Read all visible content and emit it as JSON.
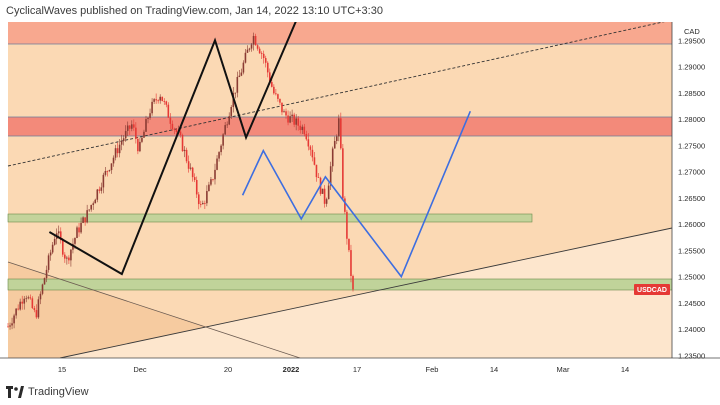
{
  "header": {
    "text": "CyclicalWaves published on TradingView.com, Jan 14, 2022 13:10 UTC+3:30"
  },
  "footer": {
    "logo_text": "TradingView"
  },
  "axis": {
    "currency": "CAD",
    "y_ticks": [
      "1.29500",
      "1.29000",
      "1.28500",
      "1.28000",
      "1.27500",
      "1.27000",
      "1.26500",
      "1.26000",
      "1.25500",
      "1.25000",
      "1.24500",
      "1.24000",
      "1.23500"
    ],
    "x_ticks": [
      "15",
      "Dec",
      "20",
      "2022",
      "17",
      "Feb",
      "14",
      "Mar",
      "14"
    ]
  },
  "symbol_badge": {
    "label": "USDCAD",
    "color": "#e53935"
  },
  "colors": {
    "background_zone": "#fbd9b4",
    "lower_zone": "#fbe3c8",
    "resistance_zone": "#f69a83",
    "support_zone": "#c3d39b",
    "candle_down": "#e53935",
    "projection_blue": "#3d6ee0"
  },
  "chart_data": {
    "type": "candlestick",
    "title": "",
    "ylim": [
      1.2345,
      1.2985
    ],
    "y_label": "CAD",
    "symbol": "USDCAD",
    "zones": [
      {
        "name": "resistance-top",
        "from": 1.295,
        "to": 1.2985
      },
      {
        "name": "resistance-mid",
        "from": 1.2776,
        "to": 1.281
      },
      {
        "name": "support-upper",
        "from": 1.261,
        "to": 1.2618
      },
      {
        "name": "support-lower",
        "from": 1.2485,
        "to": 1.2498
      }
    ],
    "price_path": [
      [
        0.0,
        1.2405
      ],
      [
        0.05,
        1.247
      ],
      [
        0.08,
        1.2425
      ],
      [
        0.11,
        1.251
      ],
      [
        0.14,
        1.259
      ],
      [
        0.17,
        1.253
      ],
      [
        0.2,
        1.2585
      ],
      [
        0.23,
        1.262
      ],
      [
        0.27,
        1.268
      ],
      [
        0.3,
        1.272
      ],
      [
        0.33,
        1.276
      ],
      [
        0.36,
        1.279
      ],
      [
        0.38,
        1.274
      ],
      [
        0.41,
        1.2815
      ],
      [
        0.44,
        1.285
      ],
      [
        0.47,
        1.28
      ],
      [
        0.5,
        1.276
      ],
      [
        0.53,
        1.27
      ],
      [
        0.56,
        1.263
      ],
      [
        0.59,
        1.268
      ],
      [
        0.62,
        1.276
      ],
      [
        0.65,
        1.284
      ],
      [
        0.68,
        1.29
      ],
      [
        0.71,
        1.296
      ],
      [
        0.74,
        1.292
      ],
      [
        0.77,
        1.285
      ],
      [
        0.8,
        1.281
      ],
      [
        0.83,
        1.2795
      ],
      [
        0.86,
        1.278
      ],
      [
        0.88,
        1.274
      ],
      [
        0.9,
        1.268
      ],
      [
        0.92,
        1.264
      ],
      [
        0.94,
        1.273
      ],
      [
        0.96,
        1.28
      ],
      [
        0.97,
        1.266
      ],
      [
        0.985,
        1.256
      ],
      [
        1.0,
        1.247
      ]
    ],
    "projections": {
      "black_zigzag": [
        [
          0.12,
          1.2585
        ],
        [
          0.33,
          1.2505
        ],
        [
          0.6,
          1.295
        ],
        [
          0.69,
          1.2765
        ],
        [
          0.85,
          1.301
        ]
      ],
      "blue_zigzag": [
        [
          0.68,
          1.2655
        ],
        [
          0.74,
          1.274
        ],
        [
          0.85,
          1.261
        ],
        [
          0.92,
          1.269
        ],
        [
          1.14,
          1.25
        ],
        [
          1.34,
          1.2815
        ]
      ]
    },
    "trendlines": [
      {
        "name": "dashed-upper",
        "from": [
          0.0,
          1.2755
        ],
        "to": [
          1.34,
          1.2975
        ]
      },
      {
        "name": "lower-rising",
        "from": [
          0.08,
          1.234
        ],
        "to": [
          1.34,
          1.2595
        ]
      },
      {
        "name": "falling-diagonal",
        "from": [
          0.0,
          1.255
        ],
        "to": [
          0.6,
          1.2348
        ]
      }
    ]
  }
}
